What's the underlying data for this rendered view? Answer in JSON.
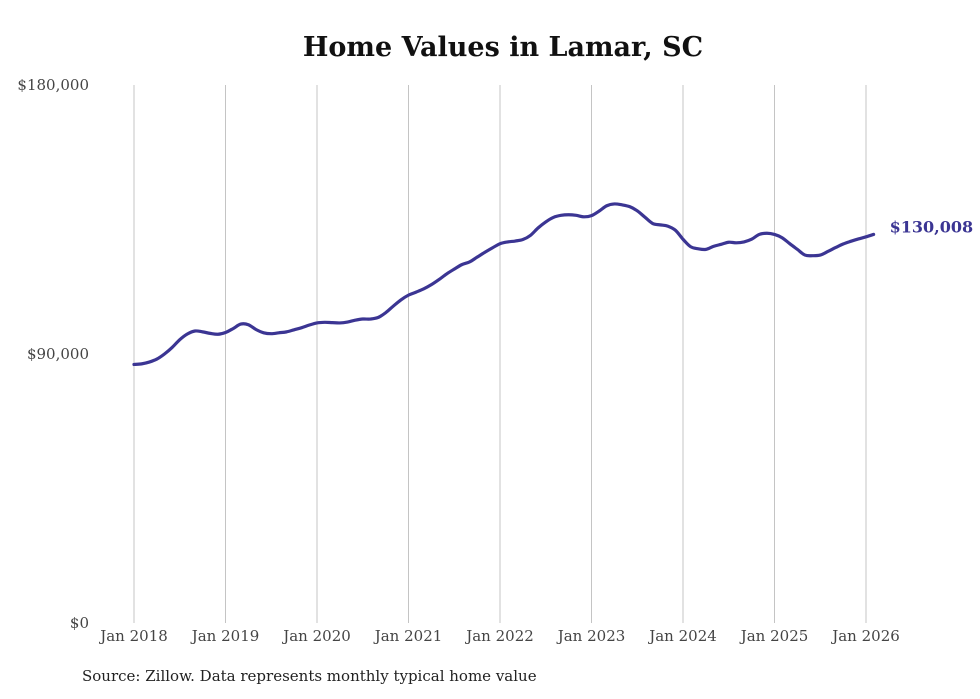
{
  "chart_data": {
    "type": "line",
    "title": "Home Values in Lamar, SC",
    "source": "Source: Zillow. Data represents monthly typical home value",
    "xlabel": "",
    "ylabel": "",
    "ylim": [
      0,
      180000
    ],
    "xlim": [
      2018,
      2026.1
    ],
    "grid": "vertical",
    "x_ticks": [
      {
        "value": 2018,
        "label": "Jan 2018"
      },
      {
        "value": 2019,
        "label": "Jan 2019"
      },
      {
        "value": 2020,
        "label": "Jan 2020"
      },
      {
        "value": 2021,
        "label": "Jan 2021"
      },
      {
        "value": 2022,
        "label": "Jan 2022"
      },
      {
        "value": 2023,
        "label": "Jan 2023"
      },
      {
        "value": 2024,
        "label": "Jan 2024"
      },
      {
        "value": 2025,
        "label": "Jan 2025"
      },
      {
        "value": 2026,
        "label": "Jan 2026"
      }
    ],
    "y_ticks": [
      {
        "value": 0,
        "label": "$0"
      },
      {
        "value": 90000,
        "label": "$90,000"
      },
      {
        "value": 180000,
        "label": "$180,000"
      }
    ],
    "series": [
      {
        "name": "Typical home value",
        "color": "#3b3593",
        "end_label": "$130,008",
        "x": [
          2018.0,
          2018.083,
          2018.167,
          2018.25,
          2018.333,
          2018.417,
          2018.5,
          2018.583,
          2018.667,
          2018.75,
          2018.833,
          2018.917,
          2019.0,
          2019.083,
          2019.167,
          2019.25,
          2019.333,
          2019.417,
          2019.5,
          2019.583,
          2019.667,
          2019.75,
          2019.833,
          2019.917,
          2020.0,
          2020.083,
          2020.167,
          2020.25,
          2020.333,
          2020.417,
          2020.5,
          2020.583,
          2020.667,
          2020.75,
          2020.833,
          2020.917,
          2021.0,
          2021.083,
          2021.167,
          2021.25,
          2021.333,
          2021.417,
          2021.5,
          2021.583,
          2021.667,
          2021.75,
          2021.833,
          2021.917,
          2022.0,
          2022.083,
          2022.167,
          2022.25,
          2022.333,
          2022.417,
          2022.5,
          2022.583,
          2022.667,
          2022.75,
          2022.833,
          2022.917,
          2023.0,
          2023.083,
          2023.167,
          2023.25,
          2023.333,
          2023.417,
          2023.5,
          2023.583,
          2023.667,
          2023.75,
          2023.833,
          2023.917,
          2024.0,
          2024.083,
          2024.167,
          2024.25,
          2024.333,
          2024.417,
          2024.5,
          2024.583,
          2024.667,
          2024.75,
          2024.833,
          2024.917,
          2025.0,
          2025.083,
          2025.167,
          2025.25,
          2025.333,
          2025.417,
          2025.5,
          2025.583,
          2025.667,
          2025.75,
          2025.833,
          2025.917,
          2026.0,
          2026.083
        ],
        "values": [
          86500,
          86700,
          87300,
          88300,
          90000,
          92200,
          94800,
          96700,
          97700,
          97400,
          96900,
          96600,
          97200,
          98500,
          100000,
          99800,
          98200,
          97100,
          96800,
          97100,
          97400,
          98100,
          98800,
          99700,
          100400,
          100600,
          100500,
          100400,
          100700,
          101300,
          101700,
          101700,
          102200,
          103800,
          106000,
          108100,
          109700,
          110700,
          111800,
          113200,
          114900,
          116800,
          118400,
          119900,
          120800,
          122400,
          124000,
          125500,
          126900,
          127500,
          127800,
          128300,
          129700,
          132200,
          134200,
          135700,
          136400,
          136600,
          136400,
          135900,
          136300,
          137800,
          139600,
          140200,
          139900,
          139300,
          137900,
          135800,
          133700,
          133200,
          132800,
          131400,
          128400,
          125900,
          125200,
          125000,
          126000,
          126700,
          127400,
          127200,
          127500,
          128400,
          130000,
          130400,
          130000,
          128900,
          126900,
          125000,
          123100,
          122900,
          123100,
          124300,
          125600,
          126800,
          127700,
          128500,
          129200,
          130008
        ]
      }
    ]
  }
}
